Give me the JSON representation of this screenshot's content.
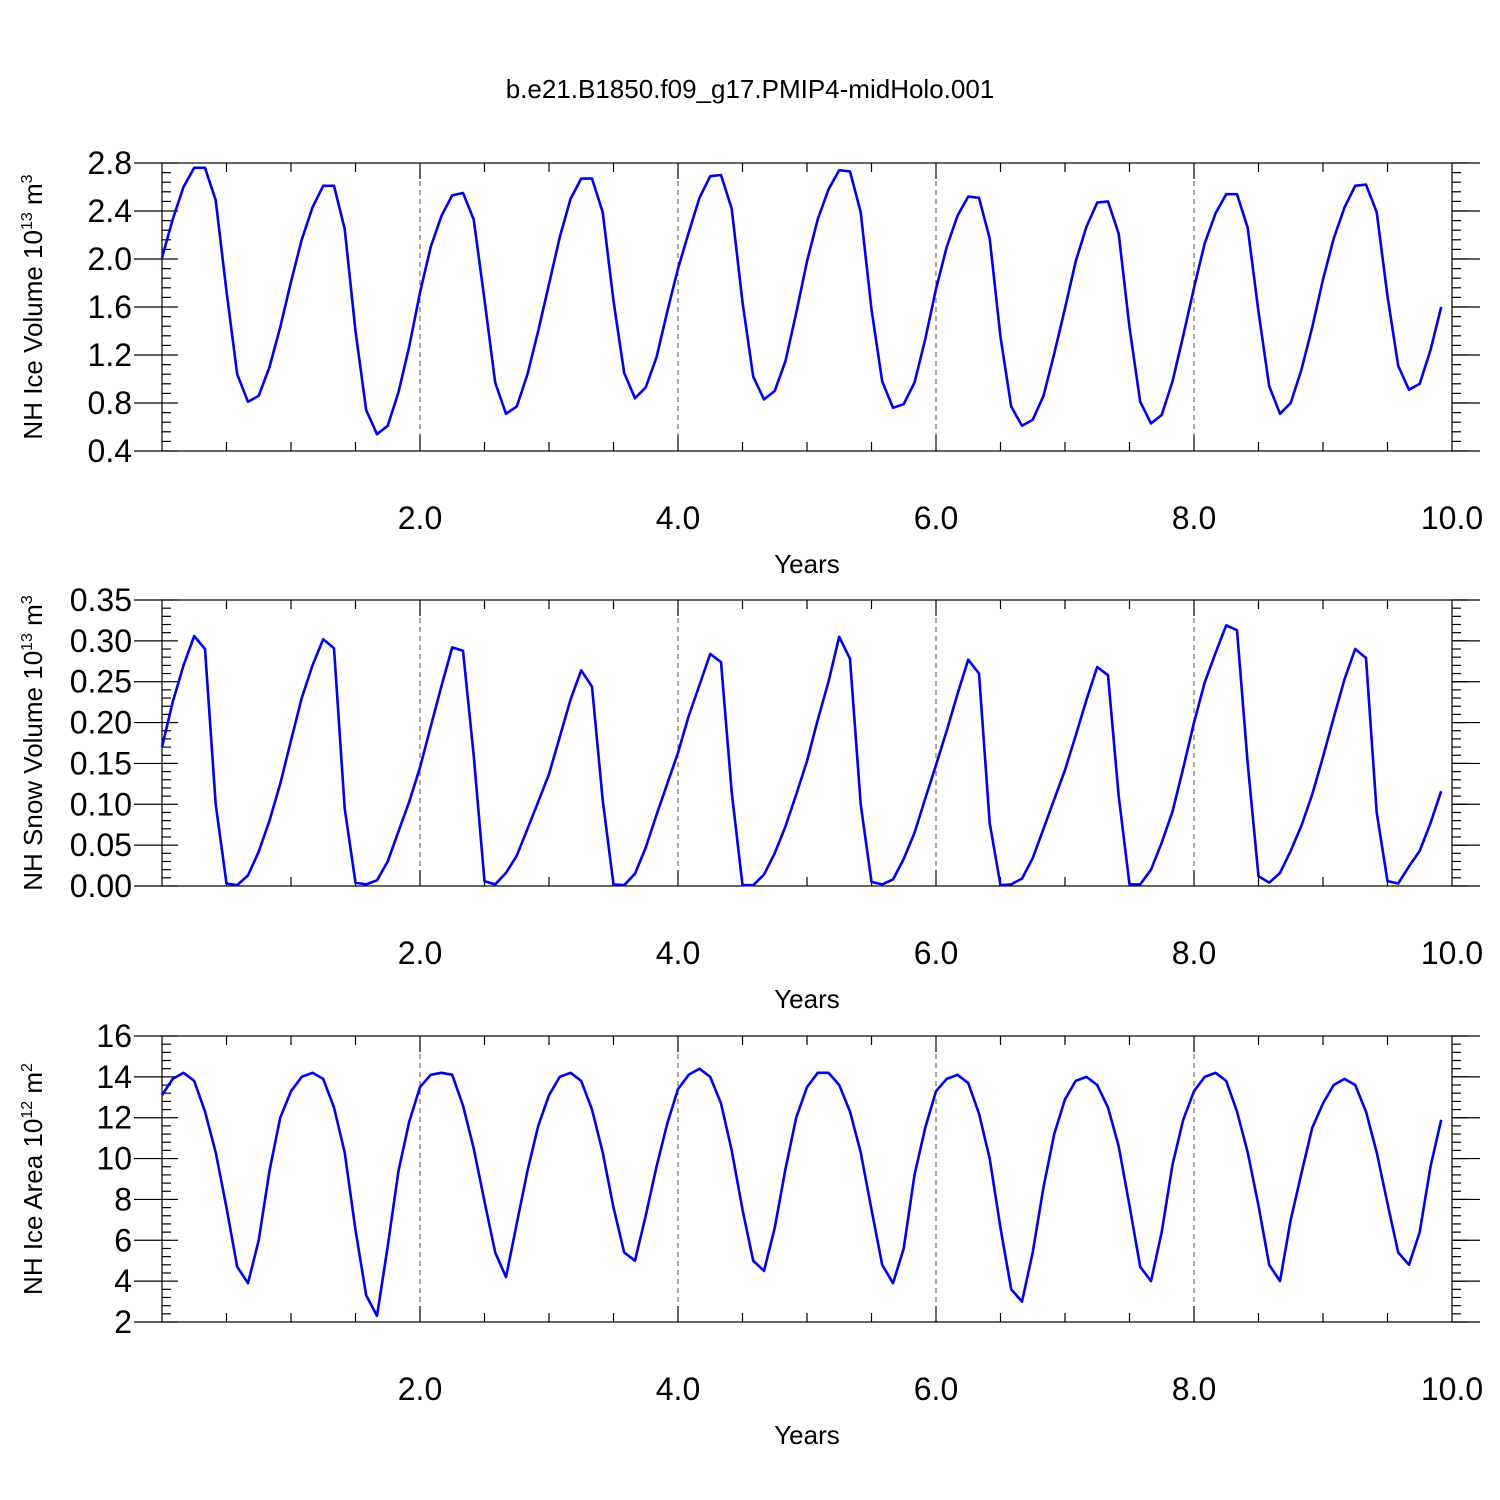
{
  "title": "b.e21.B1850.f09_g17.PMIP4-midHolo.001",
  "colors": {
    "series": "#0000ee",
    "axis": "#000000",
    "grid": "#555555"
  },
  "chart_data": [
    {
      "type": "line",
      "ylabel": {
        "text": "NH Ice Volume 10",
        "sup1": "13",
        "mid": " m",
        "sup2": "3"
      },
      "xlabel": "Years",
      "xlim": [
        0.0,
        10.0
      ],
      "ylim": [
        0.4,
        2.8
      ],
      "yticks": [
        "0.4",
        "0.8",
        "1.2",
        "1.6",
        "2.0",
        "2.4",
        "2.8"
      ],
      "xticks": [
        "2.0",
        "4.0",
        "6.0",
        "8.0",
        "10.0"
      ],
      "grid": "vertical dashed at major x ticks",
      "series": [
        {
          "x_start": 0.0,
          "x_step": 0.0833333,
          "values": [
            2.01,
            2.33,
            2.6,
            2.76,
            2.76,
            2.49,
            1.73,
            1.04,
            0.81,
            0.86,
            1.1,
            1.43,
            1.81,
            2.16,
            2.43,
            2.61,
            2.61,
            2.25,
            1.4,
            0.74,
            0.54,
            0.61,
            0.89,
            1.27,
            1.72,
            2.1,
            2.36,
            2.53,
            2.55,
            2.33,
            1.66,
            0.97,
            0.71,
            0.77,
            1.04,
            1.4,
            1.79,
            2.18,
            2.5,
            2.67,
            2.67,
            2.39,
            1.65,
            1.05,
            0.84,
            0.93,
            1.18,
            1.56,
            1.92,
            2.22,
            2.51,
            2.69,
            2.7,
            2.42,
            1.64,
            1.02,
            0.83,
            0.9,
            1.15,
            1.55,
            1.98,
            2.33,
            2.58,
            2.74,
            2.73,
            2.39,
            1.58,
            0.98,
            0.76,
            0.79,
            0.97,
            1.33,
            1.75,
            2.1,
            2.36,
            2.52,
            2.51,
            2.17,
            1.35,
            0.77,
            0.61,
            0.66,
            0.86,
            1.21,
            1.59,
            1.98,
            2.27,
            2.47,
            2.48,
            2.21,
            1.43,
            0.81,
            0.63,
            0.7,
            0.98,
            1.36,
            1.76,
            2.13,
            2.38,
            2.54,
            2.54,
            2.26,
            1.56,
            0.94,
            0.71,
            0.8,
            1.08,
            1.43,
            1.83,
            2.17,
            2.43,
            2.61,
            2.62,
            2.39,
            1.69,
            1.11,
            0.91,
            0.96,
            1.24,
            1.6
          ]
        }
      ]
    },
    {
      "type": "line",
      "ylabel": {
        "text": "NH Snow Volume 10",
        "sup1": "13",
        "mid": " m",
        "sup2": "3"
      },
      "xlabel": "Years",
      "xlim": [
        0.0,
        10.0
      ],
      "ylim": [
        0.0,
        0.35
      ],
      "yticks": [
        "0.00",
        "0.05",
        "0.10",
        "0.15",
        "0.20",
        "0.25",
        "0.30",
        "0.35"
      ],
      "xticks": [
        "2.0",
        "4.0",
        "6.0",
        "8.0",
        "10.0"
      ],
      "grid": "vertical dashed at major x ticks",
      "series": [
        {
          "x_start": 0.0,
          "x_step": 0.0833333,
          "values": [
            0.17,
            0.225,
            0.27,
            0.306,
            0.29,
            0.1,
            0.003,
            0.001,
            0.013,
            0.042,
            0.08,
            0.125,
            0.178,
            0.23,
            0.27,
            0.302,
            0.291,
            0.095,
            0.004,
            0.002,
            0.007,
            0.03,
            0.067,
            0.103,
            0.145,
            0.195,
            0.245,
            0.292,
            0.288,
            0.16,
            0.006,
            0.002,
            0.016,
            0.037,
            0.07,
            0.103,
            0.137,
            0.182,
            0.228,
            0.264,
            0.244,
            0.105,
            0.002,
            0.001,
            0.015,
            0.047,
            0.087,
            0.125,
            0.163,
            0.208,
            0.246,
            0.284,
            0.274,
            0.115,
            0.001,
            0.001,
            0.014,
            0.04,
            0.073,
            0.112,
            0.153,
            0.203,
            0.25,
            0.305,
            0.278,
            0.1,
            0.005,
            0.002,
            0.008,
            0.033,
            0.065,
            0.107,
            0.148,
            0.19,
            0.235,
            0.277,
            0.26,
            0.077,
            0.001,
            0.002,
            0.009,
            0.034,
            0.07,
            0.106,
            0.142,
            0.184,
            0.228,
            0.268,
            0.258,
            0.11,
            0.002,
            0.002,
            0.02,
            0.053,
            0.091,
            0.144,
            0.2,
            0.249,
            0.285,
            0.319,
            0.313,
            0.15,
            0.012,
            0.004,
            0.016,
            0.043,
            0.074,
            0.112,
            0.158,
            0.206,
            0.253,
            0.29,
            0.279,
            0.09,
            0.006,
            0.003,
            0.024,
            0.043,
            0.077,
            0.116
          ]
        }
      ]
    },
    {
      "type": "line",
      "ylabel": {
        "text": "NH Ice Area 10",
        "sup1": "12",
        "mid": " m",
        "sup2": "2"
      },
      "xlabel": "Years",
      "xlim": [
        0.0,
        10.0
      ],
      "ylim": [
        2,
        16
      ],
      "yticks": [
        "2",
        "4",
        "6",
        "8",
        "10",
        "12",
        "14",
        "16"
      ],
      "xticks": [
        "2.0",
        "4.0",
        "6.0",
        "8.0",
        "10.0"
      ],
      "grid": "vertical dashed at major x ticks",
      "series": [
        {
          "x_start": 0.0,
          "x_step": 0.0833333,
          "values": [
            13.1,
            13.9,
            14.2,
            13.8,
            12.3,
            10.3,
            7.6,
            4.7,
            3.9,
            6.0,
            9.4,
            12.0,
            13.3,
            14.0,
            14.2,
            13.9,
            12.5,
            10.3,
            6.5,
            3.3,
            2.3,
            5.7,
            9.4,
            11.8,
            13.5,
            14.1,
            14.2,
            14.1,
            12.6,
            10.5,
            7.9,
            5.4,
            4.2,
            6.8,
            9.4,
            11.6,
            13.1,
            14.0,
            14.2,
            13.8,
            12.4,
            10.3,
            7.6,
            5.4,
            5.0,
            7.2,
            9.6,
            11.7,
            13.4,
            14.1,
            14.4,
            14.0,
            12.7,
            10.4,
            7.5,
            5.0,
            4.5,
            6.6,
            9.5,
            12.0,
            13.5,
            14.2,
            14.2,
            13.6,
            12.3,
            10.3,
            7.5,
            4.8,
            3.9,
            5.6,
            9.2,
            11.5,
            13.3,
            13.9,
            14.1,
            13.7,
            12.2,
            10.0,
            6.6,
            3.6,
            3.0,
            5.4,
            8.6,
            11.2,
            12.9,
            13.8,
            14.0,
            13.6,
            12.5,
            10.6,
            7.7,
            4.7,
            4.0,
            6.4,
            9.7,
            11.9,
            13.3,
            14.0,
            14.2,
            13.8,
            12.3,
            10.3,
            7.7,
            4.8,
            4.0,
            7.0,
            9.3,
            11.5,
            12.7,
            13.6,
            13.9,
            13.6,
            12.3,
            10.3,
            7.8,
            5.4,
            4.8,
            6.4,
            9.6,
            11.9
          ]
        }
      ]
    }
  ]
}
